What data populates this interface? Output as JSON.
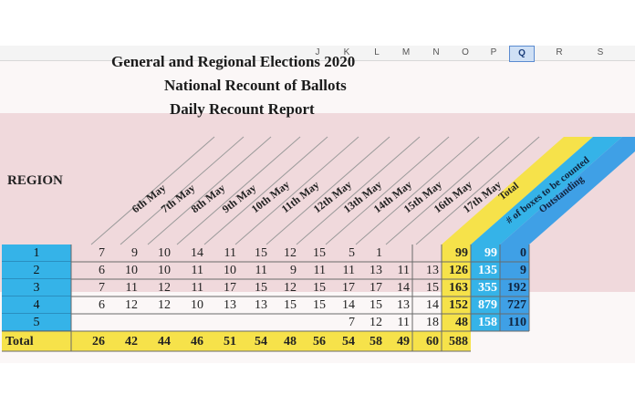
{
  "column_headers": [
    "J",
    "K",
    "L",
    "M",
    "N",
    "O",
    "P",
    "Q",
    "R",
    "S"
  ],
  "selected_column": "Q",
  "titles": [
    "General and Regional Elections 2020",
    "National Recount of Ballots",
    "Daily Recount Report"
  ],
  "region_header": "REGION",
  "dates": [
    "6th May",
    "7th May",
    "8th May",
    "9th May",
    "10th May",
    "11th May",
    "12th May",
    "13th May",
    "14th May",
    "15th May",
    "16th May",
    "17th May"
  ],
  "extra_headers": {
    "total": "Total",
    "boxes": "# of boxes to be counted",
    "outstanding": "Outstanding"
  },
  "rows": [
    {
      "region": "1",
      "values": [
        "7",
        "9",
        "10",
        "14",
        "11",
        "15",
        "12",
        "15",
        "5",
        "1",
        "",
        ""
      ],
      "total": "99",
      "boxes": "99",
      "outstanding": "0"
    },
    {
      "region": "2",
      "values": [
        "6",
        "10",
        "10",
        "11",
        "10",
        "11",
        "9",
        "11",
        "11",
        "13",
        "11",
        "13"
      ],
      "total": "126",
      "boxes": "135",
      "outstanding": "9"
    },
    {
      "region": "3",
      "values": [
        "7",
        "11",
        "12",
        "11",
        "17",
        "15",
        "12",
        "15",
        "17",
        "17",
        "14",
        "15"
      ],
      "total": "163",
      "boxes": "355",
      "outstanding": "192"
    },
    {
      "region": "4",
      "values": [
        "6",
        "12",
        "12",
        "10",
        "13",
        "13",
        "15",
        "15",
        "14",
        "15",
        "13",
        "14"
      ],
      "total": "152",
      "boxes": "879",
      "outstanding": "727"
    },
    {
      "region": "5",
      "values": [
        "",
        "",
        "",
        "",
        "",
        "",
        "",
        "",
        "7",
        "12",
        "11",
        "18"
      ],
      "total": "48",
      "boxes": "158",
      "outstanding": "110"
    }
  ],
  "total_row": {
    "label": "Total",
    "values": [
      "26",
      "42",
      "44",
      "46",
      "51",
      "54",
      "48",
      "56",
      "54",
      "58",
      "49",
      "60"
    ],
    "total": "588"
  },
  "colors": {
    "region_blue": "#35b3e8",
    "total_yellow": "#f6e24a",
    "boxes_blue": "#35b3e8",
    "outstanding_blue": "#3fa0e6",
    "header_band": "#f0d9dc"
  }
}
